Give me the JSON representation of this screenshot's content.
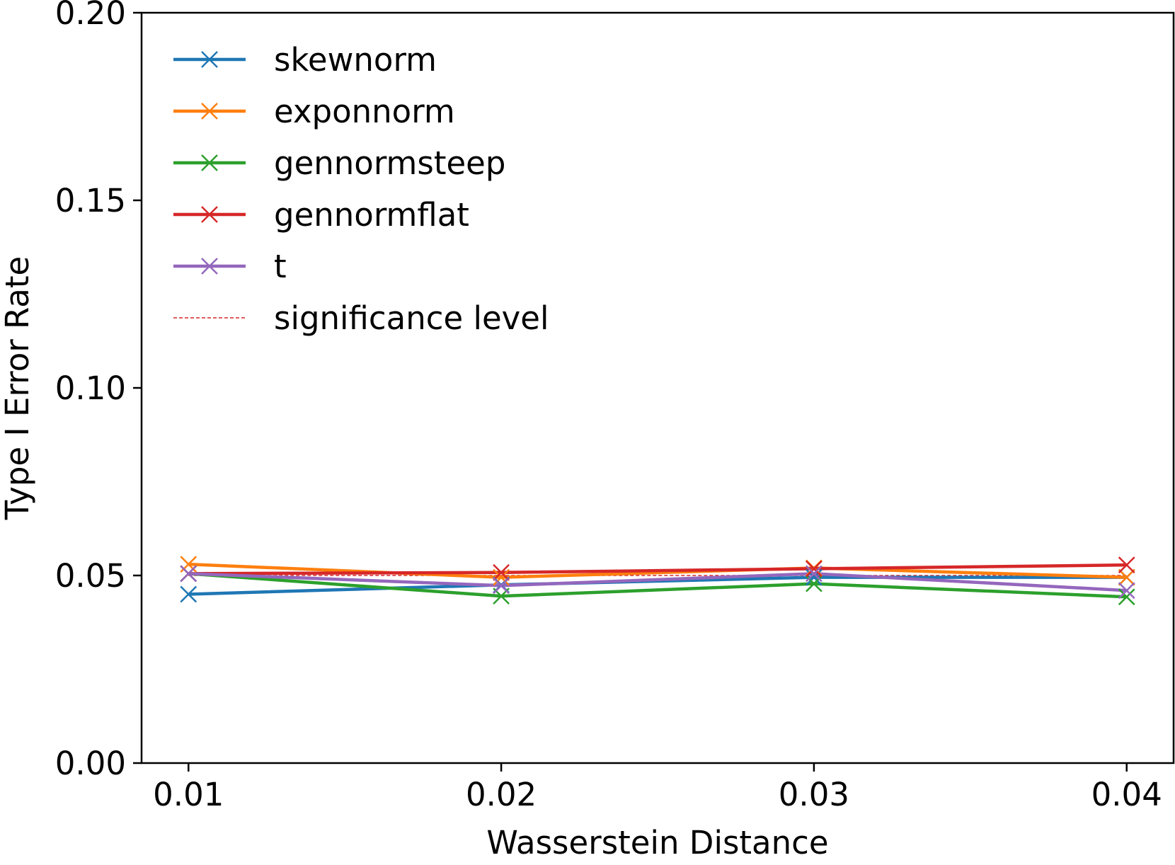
{
  "chart_data": {
    "type": "line",
    "title": "",
    "xlabel": "Wasserstein Distance",
    "ylabel": "Type I Error Rate",
    "x": [
      0.01,
      0.02,
      0.03,
      0.04
    ],
    "x_tick_labels": [
      "0.01",
      "0.02",
      "0.03",
      "0.04"
    ],
    "xlim": [
      0.0085,
      0.0415
    ],
    "ylim": [
      0.0,
      0.2
    ],
    "y_ticks": [
      0.0,
      0.05,
      0.1,
      0.15,
      0.2
    ],
    "y_tick_labels": [
      "0.00",
      "0.05",
      "0.10",
      "0.15",
      "0.20"
    ],
    "grid": false,
    "legend_position": "top-left",
    "marker": "x",
    "series": [
      {
        "name": "skewnorm",
        "color": "#1f77b4",
        "values": [
          0.045,
          0.0475,
          0.0495,
          0.0495
        ]
      },
      {
        "name": "exponnorm",
        "color": "#ff7f0e",
        "values": [
          0.053,
          0.0495,
          0.052,
          0.0495
        ]
      },
      {
        "name": "gennormsteep",
        "color": "#2ca02c",
        "values": [
          0.0505,
          0.0445,
          0.0478,
          0.0443
        ]
      },
      {
        "name": "gennormflat",
        "color": "#d62728",
        "values": [
          0.0505,
          0.0508,
          0.0518,
          0.0528
        ]
      },
      {
        "name": "t",
        "color": "#9467bd",
        "values": [
          0.0505,
          0.0473,
          0.0505,
          0.046
        ]
      }
    ],
    "reference_line": {
      "name": "significance level",
      "value": 0.05,
      "color": "#d62728",
      "style": "dashed"
    }
  }
}
